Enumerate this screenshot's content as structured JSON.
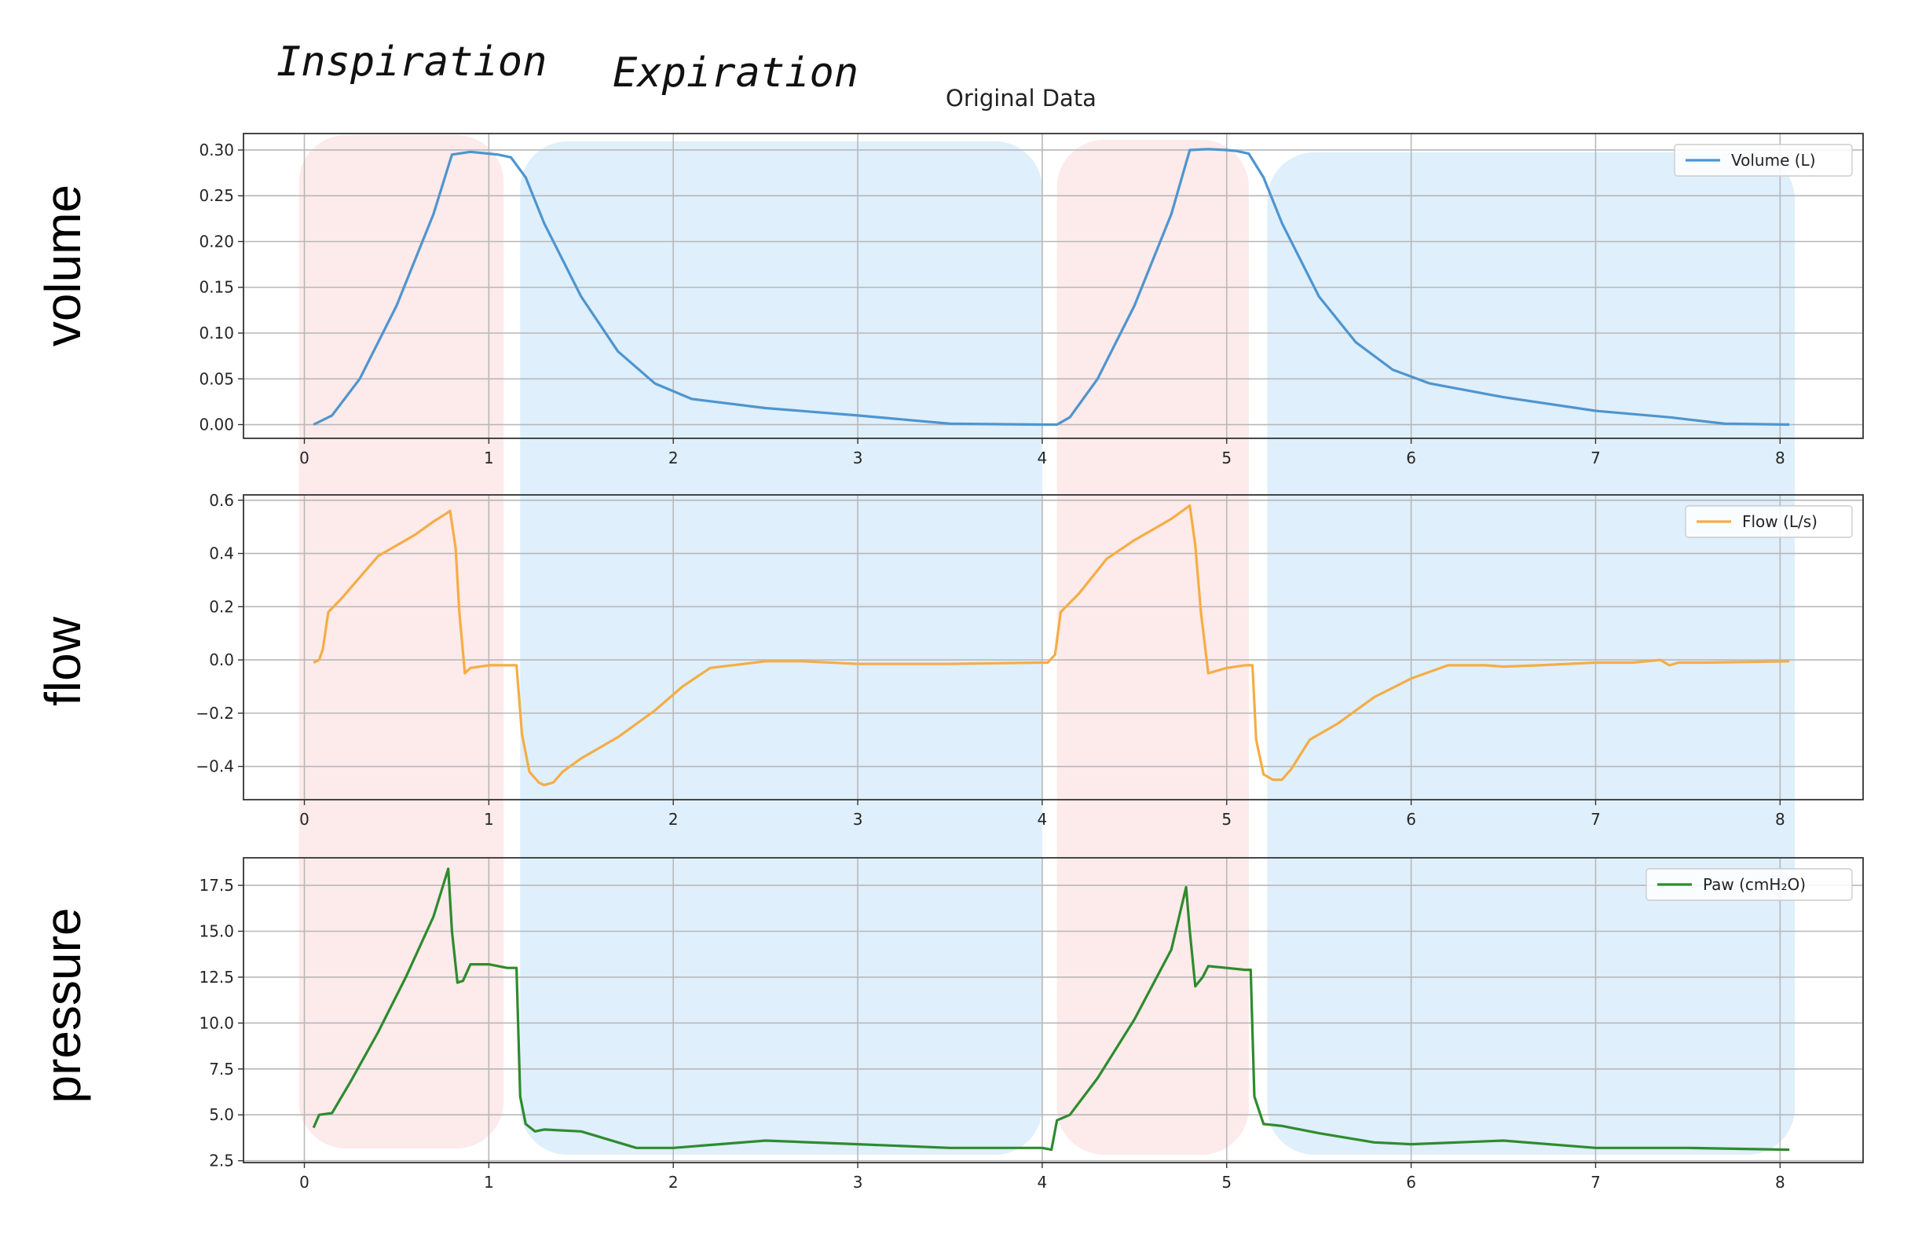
{
  "annotations": {
    "inspiration": "Inspiration",
    "expiration": "Expiration"
  },
  "title": "Original Data",
  "colors": {
    "inspiration_band": "#fde6e6",
    "expiration_band": "#d9ecfb",
    "volume": "#4e95cf",
    "flow": "#f5ad45",
    "pressure": "#2e8b2e",
    "grid": "#b8b8b8"
  },
  "chart_data": [
    {
      "type": "line",
      "side_label": "volume",
      "legend": "Volume (L)",
      "legend_position": "top-right",
      "grid": true,
      "xlim": [
        -0.33,
        8.45
      ],
      "ylim": [
        -0.015,
        0.318
      ],
      "xticks": [
        "0",
        "1",
        "2",
        "3",
        "4",
        "5",
        "6",
        "7",
        "8"
      ],
      "yticks": [
        "0.00",
        "0.05",
        "0.10",
        "0.15",
        "0.20",
        "0.25",
        "0.30"
      ],
      "x": [
        0.05,
        0.15,
        0.3,
        0.5,
        0.7,
        0.8,
        0.9,
        1.0,
        1.05,
        1.12,
        1.2,
        1.3,
        1.5,
        1.7,
        1.9,
        2.1,
        2.5,
        3.0,
        3.5,
        4.0,
        4.08,
        4.15,
        4.3,
        4.5,
        4.7,
        4.8,
        4.9,
        5.0,
        5.05,
        5.12,
        5.2,
        5.3,
        5.5,
        5.7,
        5.9,
        6.1,
        6.5,
        7.0,
        7.4,
        7.7,
        8.05
      ],
      "y": [
        0.0,
        0.01,
        0.05,
        0.13,
        0.23,
        0.295,
        0.298,
        0.296,
        0.295,
        0.292,
        0.27,
        0.22,
        0.14,
        0.08,
        0.045,
        0.028,
        0.018,
        0.01,
        0.001,
        0.0,
        0.0,
        0.008,
        0.05,
        0.13,
        0.23,
        0.3,
        0.301,
        0.3,
        0.299,
        0.296,
        0.27,
        0.22,
        0.14,
        0.09,
        0.06,
        0.045,
        0.03,
        0.015,
        0.008,
        0.001,
        0.0
      ]
    },
    {
      "type": "line",
      "side_label": "flow",
      "legend": "Flow (L/s)",
      "legend_position": "top-right",
      "grid": true,
      "xlim": [
        -0.33,
        8.45
      ],
      "ylim": [
        -0.525,
        0.62
      ],
      "xticks": [
        "0",
        "1",
        "2",
        "3",
        "4",
        "5",
        "6",
        "7",
        "8"
      ],
      "yticks": [
        "0.6",
        "0.4",
        "0.2",
        "0.0",
        "−0.2",
        "−0.4"
      ],
      "x": [
        0.05,
        0.08,
        0.1,
        0.13,
        0.2,
        0.3,
        0.4,
        0.5,
        0.6,
        0.7,
        0.77,
        0.79,
        0.82,
        0.84,
        0.87,
        0.9,
        1.0,
        1.1,
        1.15,
        1.18,
        1.22,
        1.27,
        1.3,
        1.35,
        1.4,
        1.5,
        1.7,
        1.9,
        2.05,
        2.2,
        2.5,
        2.7,
        3.0,
        3.5,
        4.0,
        4.03,
        4.07,
        4.1,
        4.2,
        4.35,
        4.5,
        4.6,
        4.7,
        4.78,
        4.8,
        4.83,
        4.86,
        4.9,
        5.0,
        5.1,
        5.14,
        5.16,
        5.2,
        5.25,
        5.3,
        5.35,
        5.45,
        5.6,
        5.8,
        6.0,
        6.2,
        6.4,
        6.5,
        6.7,
        7.0,
        7.2,
        7.35,
        7.4,
        7.45,
        7.6,
        8.05
      ],
      "y": [
        -0.01,
        0.0,
        0.04,
        0.18,
        0.23,
        0.31,
        0.39,
        0.43,
        0.47,
        0.52,
        0.55,
        0.56,
        0.42,
        0.18,
        -0.05,
        -0.03,
        -0.02,
        -0.02,
        -0.02,
        -0.28,
        -0.42,
        -0.46,
        -0.47,
        -0.46,
        -0.42,
        -0.37,
        -0.29,
        -0.19,
        -0.1,
        -0.03,
        -0.005,
        -0.005,
        -0.015,
        -0.015,
        -0.01,
        -0.01,
        0.02,
        0.18,
        0.25,
        0.38,
        0.45,
        0.49,
        0.53,
        0.57,
        0.58,
        0.43,
        0.18,
        -0.05,
        -0.03,
        -0.02,
        -0.02,
        -0.3,
        -0.43,
        -0.45,
        -0.45,
        -0.41,
        -0.3,
        -0.24,
        -0.14,
        -0.07,
        -0.02,
        -0.02,
        -0.025,
        -0.02,
        -0.01,
        -0.01,
        0.0,
        -0.02,
        -0.01,
        -0.01,
        -0.005
      ]
    },
    {
      "type": "line",
      "side_label": "pressure",
      "legend": "Paw (cmH₂O)",
      "legend_position": "top-right",
      "grid": true,
      "xlim": [
        -0.33,
        8.45
      ],
      "ylim": [
        2.4,
        19.0
      ],
      "xticks": [
        "0",
        "1",
        "2",
        "3",
        "4",
        "5",
        "6",
        "7",
        "8"
      ],
      "yticks": [
        "2.5",
        "5.0",
        "7.5",
        "10.0",
        "12.5",
        "15.0",
        "17.5"
      ],
      "x": [
        0.05,
        0.08,
        0.15,
        0.25,
        0.4,
        0.55,
        0.7,
        0.78,
        0.8,
        0.83,
        0.86,
        0.9,
        1.0,
        1.1,
        1.15,
        1.17,
        1.2,
        1.25,
        1.3,
        1.5,
        1.8,
        2.0,
        2.5,
        3.0,
        3.5,
        4.0,
        4.05,
        4.08,
        4.15,
        4.3,
        4.5,
        4.7,
        4.78,
        4.8,
        4.83,
        4.87,
        4.9,
        5.0,
        5.1,
        5.13,
        5.15,
        5.2,
        5.3,
        5.5,
        5.8,
        6.0,
        6.5,
        7.0,
        7.5,
        8.05
      ],
      "y": [
        4.3,
        5.0,
        5.1,
        6.8,
        9.5,
        12.5,
        15.8,
        18.4,
        15.0,
        12.2,
        12.3,
        13.2,
        13.2,
        13.0,
        13.0,
        6.0,
        4.5,
        4.1,
        4.2,
        4.1,
        3.2,
        3.2,
        3.6,
        3.4,
        3.2,
        3.2,
        3.1,
        4.7,
        5.0,
        7.0,
        10.2,
        14.0,
        17.4,
        15.0,
        12.0,
        12.5,
        13.1,
        13.0,
        12.9,
        12.9,
        6.0,
        4.5,
        4.4,
        4.0,
        3.5,
        3.4,
        3.6,
        3.2,
        3.2,
        3.1
      ]
    }
  ]
}
